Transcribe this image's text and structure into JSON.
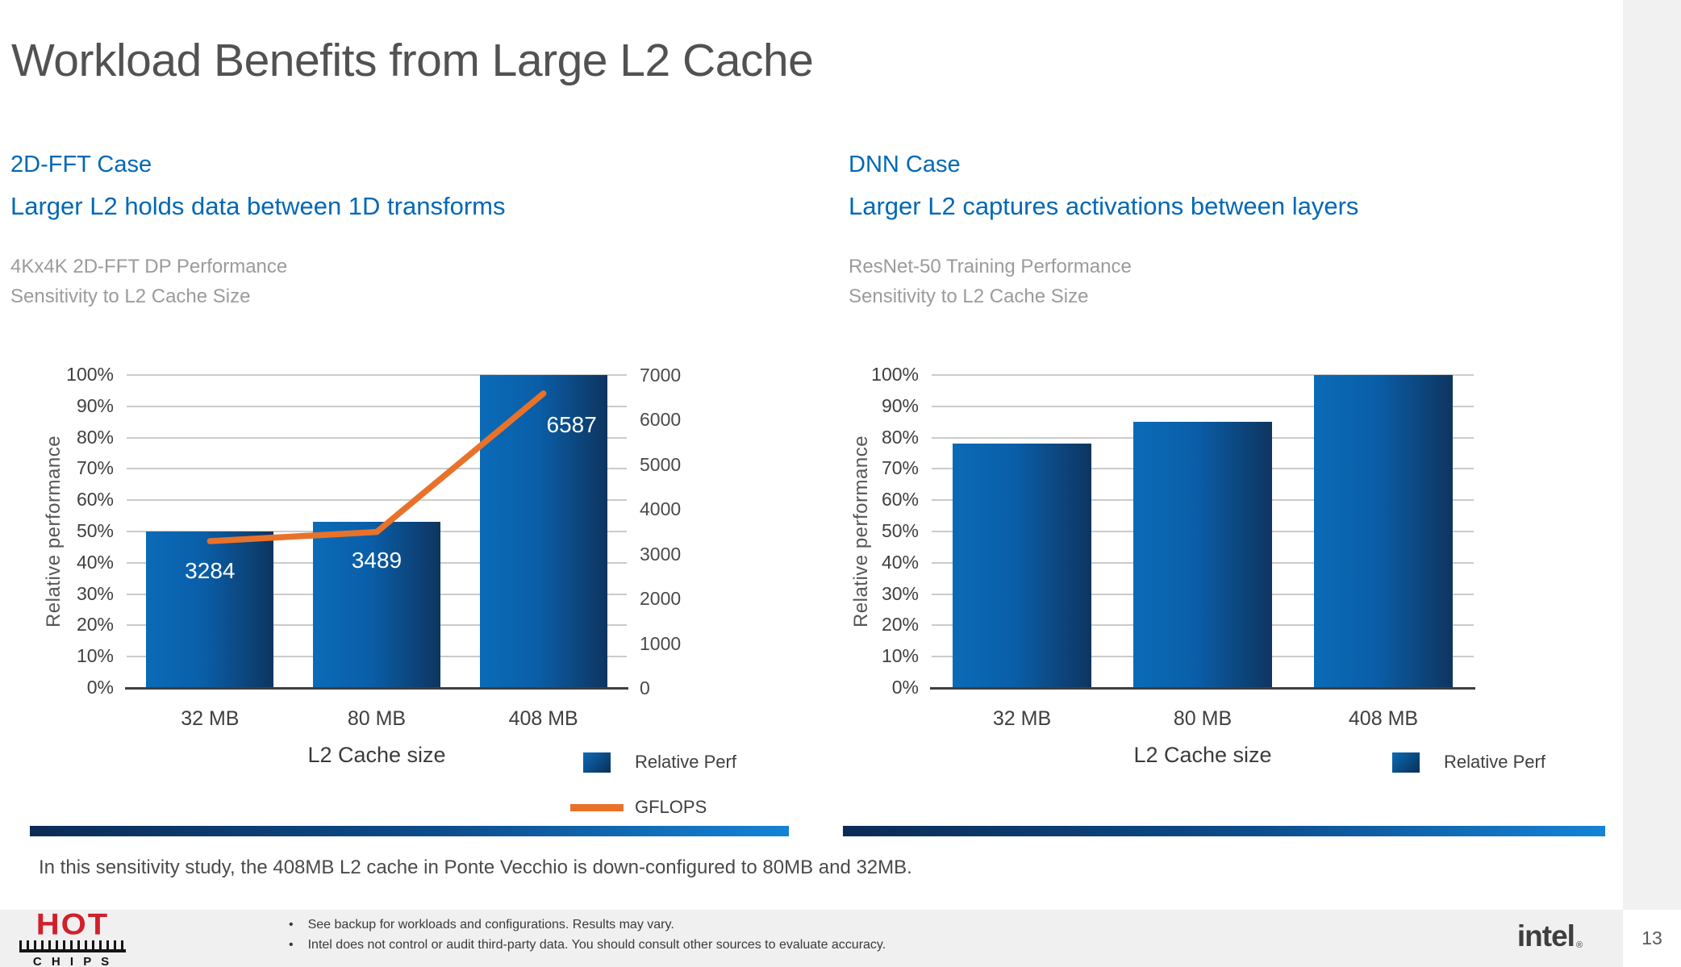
{
  "page": {
    "title": "Workload Benefits from Large L2 Cache",
    "note": "In this sensitivity study, the 408MB L2 cache in Ponte Vecchio is down-configured to 80MB and 32MB.",
    "page_number": "13",
    "footer_bullets": [
      "See backup for workloads and configurations. Results may vary.",
      "Intel does not control or audit third-party data.  You should consult other sources to evaluate accuracy."
    ],
    "hotchips_logo": {
      "hot": "HOT",
      "chips": "C H I P S"
    },
    "intel_logo": {
      "text": "intel",
      "reg": "®"
    }
  },
  "panels": [
    {
      "case_label": "2D-FFT Case",
      "headline": "Larger L2 holds data between 1D transforms",
      "subtitle": [
        "4Kx4K 2D-FFT DP Performance",
        "Sensitivity to L2 Cache Size"
      ]
    },
    {
      "case_label": "DNN Case",
      "headline": "Larger L2 captures activations between layers",
      "subtitle": [
        "ResNet-50 Training Performance",
        "Sensitivity to L2 Cache Size"
      ]
    }
  ],
  "chart_data": [
    {
      "type": "bar",
      "title": "4Kx4K 2D-FFT DP Performance Sensitivity to L2 Cache Size",
      "categories": [
        "32 MB",
        "80 MB",
        "408 MB"
      ],
      "series": [
        {
          "name": "Relative Perf",
          "type": "bar",
          "axis": "left",
          "values": [
            50,
            53,
            100
          ]
        },
        {
          "name": "GFLOPS",
          "type": "line",
          "axis": "right",
          "values": [
            3284,
            3489,
            6587
          ],
          "data_labels": [
            "3284",
            "3489",
            "6587"
          ]
        }
      ],
      "xlabel": "L2 Cache size",
      "ylabel": "Relative performance",
      "axis_left": {
        "min": 0,
        "max": 100,
        "step": 10,
        "suffix": "%"
      },
      "axis_right": {
        "min": 0,
        "max": 7000,
        "step": 1000
      },
      "legend": [
        "Relative Perf",
        "GFLOPS"
      ],
      "grid": true,
      "legend_position": "bottom-right"
    },
    {
      "type": "bar",
      "title": "ResNet-50 Training Performance Sensitivity to L2 Cache Size",
      "categories": [
        "32 MB",
        "80 MB",
        "408 MB"
      ],
      "series": [
        {
          "name": "Relative Perf",
          "type": "bar",
          "axis": "left",
          "values": [
            78,
            85,
            100
          ]
        }
      ],
      "xlabel": "L2 Cache size",
      "ylabel": "Relative performance",
      "axis_left": {
        "min": 0,
        "max": 100,
        "step": 10,
        "suffix": "%"
      },
      "legend": [
        "Relative Perf"
      ],
      "grid": true,
      "legend_position": "bottom-right"
    }
  ],
  "colors": {
    "accent_blue": "#0068b5",
    "bar_gradient_start": "#0b6bb7",
    "bar_gradient_end": "#0e3560",
    "line_orange": "#e8722a",
    "title_gray": "#525252",
    "subtitle_gray": "#9b9b9b",
    "hotchips_red": "#d1202a",
    "divider_start": "#0b2b55",
    "divider_end": "#1483d6"
  }
}
